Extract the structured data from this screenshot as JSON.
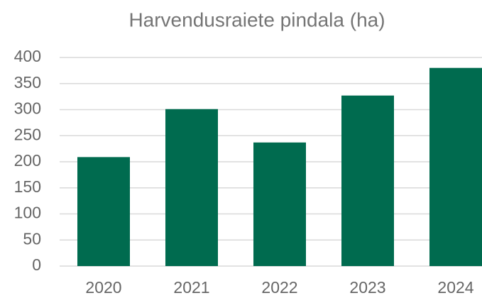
{
  "chart_data": {
    "type": "bar",
    "title": "Harvendusraiete pindala (ha)",
    "categories": [
      "2020",
      "2021",
      "2022",
      "2023",
      "2024"
    ],
    "values": [
      209,
      301,
      237,
      327,
      380
    ],
    "color": "#006b4f",
    "ylim": [
      0,
      400
    ],
    "yticks": [
      0,
      50,
      100,
      150,
      200,
      250,
      300,
      350,
      400
    ],
    "grid": true
  }
}
